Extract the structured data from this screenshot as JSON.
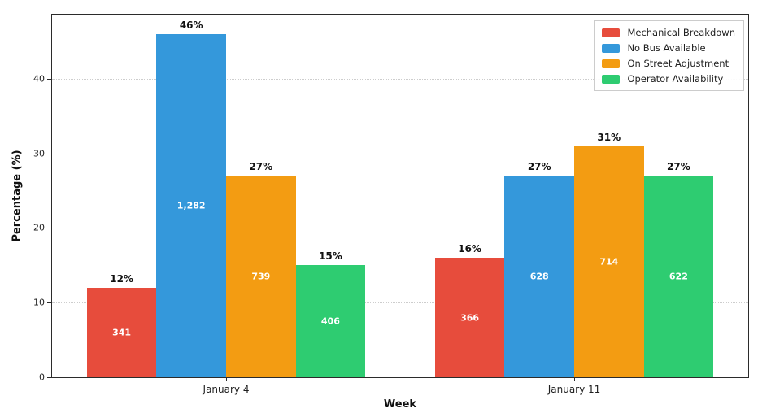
{
  "chart_data": {
    "type": "bar",
    "title": "",
    "xlabel": "Week",
    "ylabel": "Percentage (%)",
    "categories": [
      "January 4",
      "January 11"
    ],
    "series": [
      {
        "name": "Mechanical Breakdown",
        "color": "#e74c3c",
        "values": [
          12,
          16
        ],
        "value_labels": [
          "12%",
          "16%"
        ],
        "counts": [
          "341",
          "366"
        ]
      },
      {
        "name": "No Bus Available",
        "color": "#3498db",
        "values": [
          46,
          27
        ],
        "value_labels": [
          "46%",
          "27%"
        ],
        "counts": [
          "1,282",
          "628"
        ]
      },
      {
        "name": "On Street Adjustment",
        "color": "#f39c12",
        "values": [
          27,
          31
        ],
        "value_labels": [
          "27%",
          "31%"
        ],
        "counts": [
          "739",
          "714"
        ]
      },
      {
        "name": "Operator Availability",
        "color": "#2ecc71",
        "values": [
          15,
          27
        ],
        "value_labels": [
          "15%",
          "27%"
        ],
        "counts": [
          "406",
          "622"
        ]
      }
    ],
    "yticks": [
      0,
      10,
      20,
      30,
      40
    ],
    "ylim": [
      0,
      48.6
    ],
    "grid": "horizontal-dotted",
    "legend_position": "upper-right",
    "grid_color": "#cdcdcd",
    "spine_color": "#2b2b2b",
    "value_label_color": "#111111",
    "count_label_color": "#ffffff"
  }
}
